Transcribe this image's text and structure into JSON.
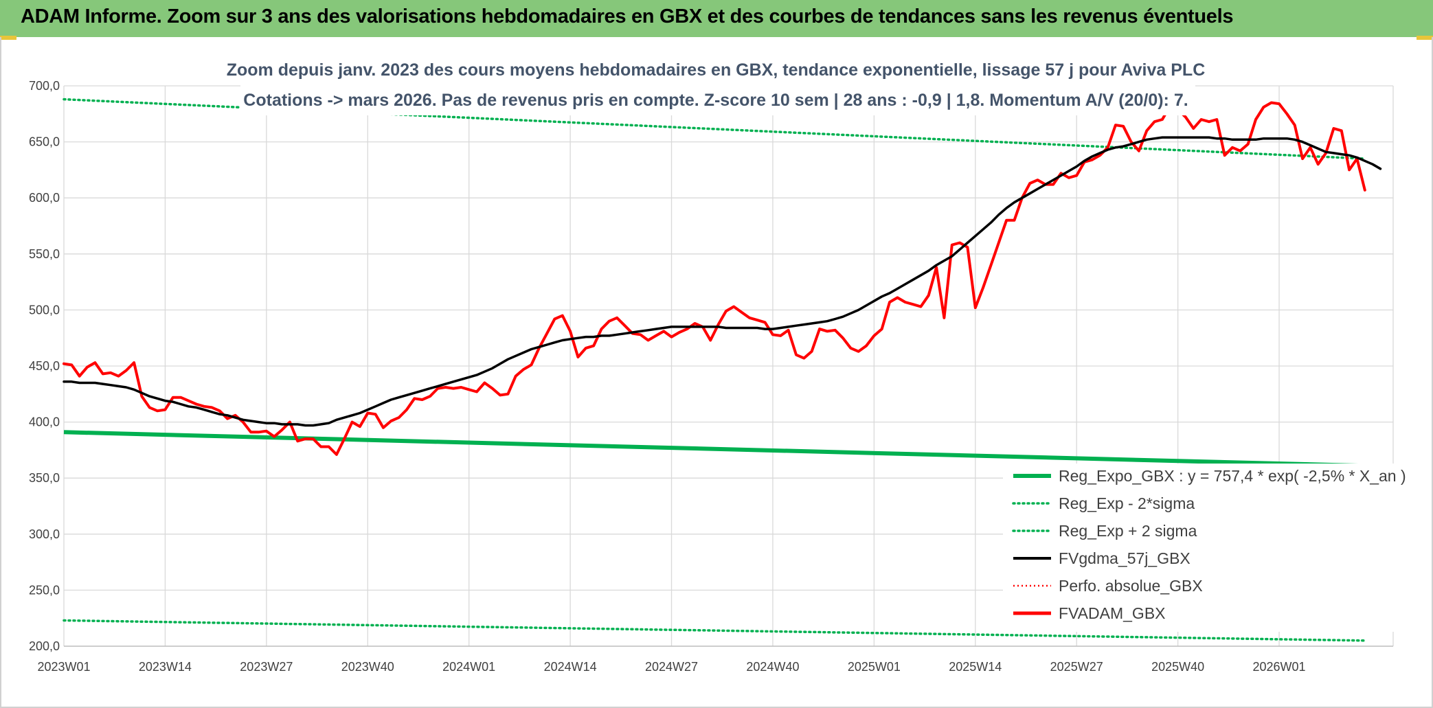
{
  "header": {
    "title": "ADAM Informe. Zoom sur 3 ans des valorisations hebdomadaires en GBX et des courbes de tendances sans les revenus éventuels"
  },
  "chart_data": {
    "type": "line",
    "subtitle_lines": [
      "Zoom depuis janv. 2023 des cours moyens hebdomadaires en GBX, tendance exponentielle, lissage 57 j pour Aviva PLC",
      "Cotations -> mars 2026. Pas de revenus pris en compte. Z-score 10 sem | 28 ans : -0,9 | 1,8. Momentum A/V (20/0): 7."
    ],
    "x_tick_labels": [
      "2023W01",
      "2023W14",
      "2023W27",
      "2023W40",
      "2024W01",
      "2024W14",
      "2024W27",
      "2024W40",
      "2025W01",
      "2025W14",
      "2025W27",
      "2025W40",
      "2026W01"
    ],
    "y_tick_labels": [
      "200,0",
      "250,0",
      "300,0",
      "350,0",
      "400,0",
      "450,0",
      "500,0",
      "550,0",
      "600,0",
      "650,0",
      "700,0"
    ],
    "ylim": [
      200,
      700
    ],
    "grid": true,
    "legend_position": "bottom-right",
    "series": [
      {
        "name": "Reg_Expo_GBX : y = 757,4 * exp( -2,5% *  X_an )",
        "color": "#00b050",
        "style": "solid-thick",
        "start": 391,
        "end": 361
      },
      {
        "name": "Reg_Exp - 2*sigma",
        "color": "#00b050",
        "style": "dotted",
        "start": 223,
        "end": 205
      },
      {
        "name": "Reg_Exp + 2 sigma",
        "color": "#00b050",
        "style": "dotted",
        "start": 688,
        "end": 635
      },
      {
        "name": "FVgdma_57j_GBX",
        "color": "#000000",
        "style": "solid",
        "values": [
          436,
          436,
          435,
          435,
          435,
          434,
          433,
          432,
          431,
          429,
          426,
          423,
          421,
          419,
          418,
          416,
          414,
          413,
          411,
          409,
          407,
          406,
          404,
          402,
          401,
          400,
          399,
          399,
          398,
          398,
          398,
          397,
          397,
          398,
          399,
          402,
          404,
          406,
          408,
          411,
          414,
          417,
          420,
          422,
          424,
          426,
          428,
          430,
          432,
          434,
          436,
          438,
          440,
          442,
          445,
          448,
          452,
          456,
          459,
          462,
          465,
          467,
          469,
          471,
          473,
          474,
          475,
          476,
          476,
          477,
          477,
          478,
          479,
          480,
          481,
          482,
          483,
          484,
          485,
          485,
          485,
          485,
          485,
          485,
          485,
          484,
          484,
          484,
          484,
          484,
          483,
          483,
          484,
          485,
          486,
          487,
          488,
          489,
          490,
          492,
          494,
          497,
          500,
          504,
          508,
          512,
          515,
          519,
          523,
          527,
          531,
          535,
          540,
          544,
          548,
          554,
          560,
          566,
          572,
          578,
          585,
          591,
          596,
          600,
          604,
          608,
          612,
          616,
          620,
          624,
          628,
          633,
          637,
          640,
          643,
          645,
          646,
          648,
          650,
          652,
          653,
          654,
          654,
          654,
          654,
          654,
          654,
          654,
          653,
          653,
          652,
          652,
          652,
          652,
          653,
          653,
          653,
          653,
          652,
          650,
          647,
          644,
          641,
          640,
          639,
          638,
          636,
          633,
          630,
          626
        ]
      },
      {
        "name": "Perfo. absolue_GBX",
        "color": "#ff0000",
        "style": "dotted-thin",
        "values": []
      },
      {
        "name": "FVADAM_GBX",
        "color": "#ff0000",
        "style": "solid-thick",
        "values": [
          452,
          451,
          441,
          449,
          453,
          443,
          444,
          441,
          446,
          453,
          423,
          413,
          410,
          411,
          422,
          422,
          419,
          416,
          414,
          413,
          410,
          403,
          406,
          400,
          391,
          391,
          392,
          387,
          393,
          400,
          383,
          385,
          385,
          378,
          378,
          371,
          385,
          400,
          396,
          408,
          407,
          395,
          401,
          404,
          411,
          421,
          420,
          423,
          430,
          431,
          430,
          431,
          429,
          427,
          435,
          430,
          424,
          425,
          441,
          447,
          451,
          466,
          479,
          492,
          495,
          481,
          458,
          466,
          468,
          483,
          490,
          493,
          486,
          479,
          478,
          473,
          477,
          481,
          476,
          480,
          483,
          488,
          485,
          473,
          487,
          499,
          503,
          498,
          493,
          491,
          489,
          478,
          477,
          482,
          460,
          457,
          463,
          483,
          481,
          482,
          475,
          466,
          463,
          468,
          477,
          483,
          507,
          511,
          507,
          505,
          503,
          513,
          538,
          493,
          558,
          560,
          556,
          502,
          520,
          540,
          560,
          580,
          580,
          600,
          613,
          616,
          612,
          612,
          622,
          618,
          620,
          632,
          634,
          638,
          645,
          665,
          664,
          650,
          642,
          660,
          668,
          670,
          682,
          679,
          672,
          662,
          670,
          668,
          670,
          638,
          645,
          642,
          648,
          670,
          681,
          685,
          684,
          675,
          665,
          635,
          645,
          630,
          640,
          662,
          660,
          625,
          635,
          607
        ]
      }
    ]
  }
}
